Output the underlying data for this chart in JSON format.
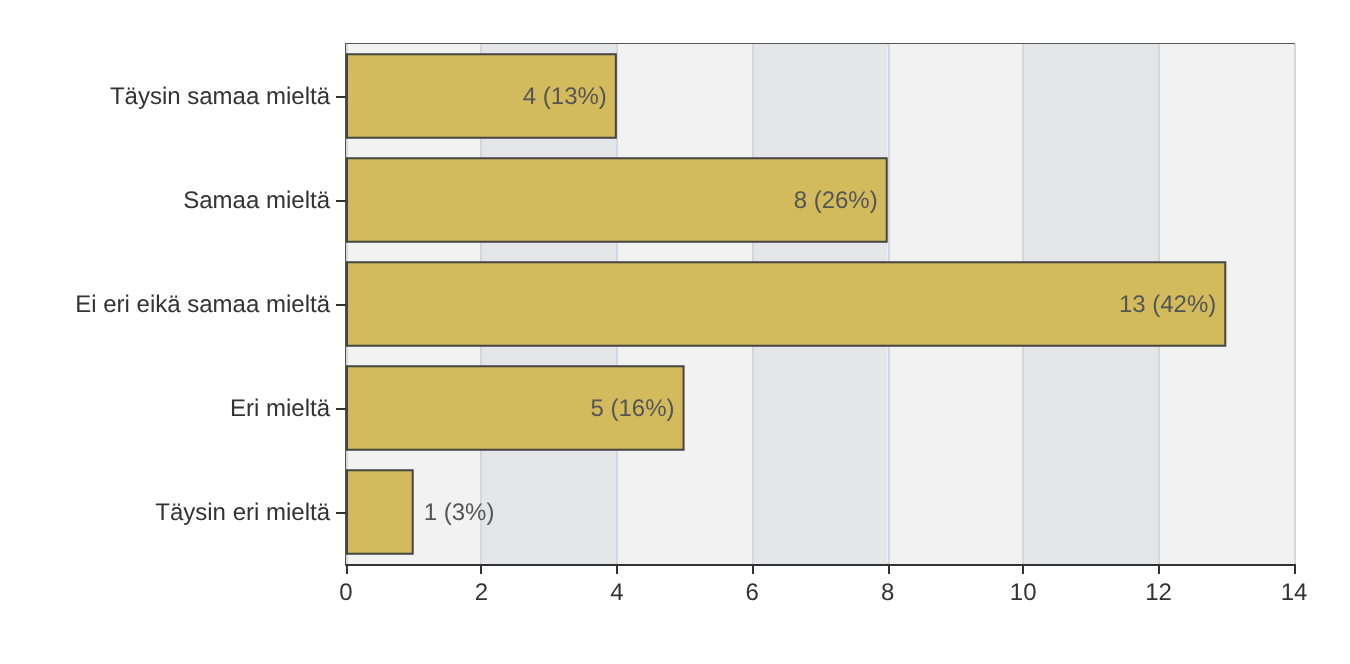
{
  "chart_data": {
    "type": "bar",
    "orientation": "horizontal",
    "categories": [
      "Täysin samaa mieltä",
      "Samaa mieltä",
      "Ei eri eikä samaa mieltä",
      "Eri mieltä",
      "Täysin eri mieltä"
    ],
    "values": [
      4,
      8,
      13,
      5,
      1
    ],
    "value_labels": [
      "4 (13%)",
      "8 (26%)",
      "13 (42%)",
      "5 (16%)",
      "1 (3%)"
    ],
    "color": "#d3bb5d",
    "xlim": [
      0,
      14
    ],
    "xticks": [
      0,
      2,
      4,
      6,
      8,
      10,
      12,
      14
    ],
    "grid": "x"
  }
}
